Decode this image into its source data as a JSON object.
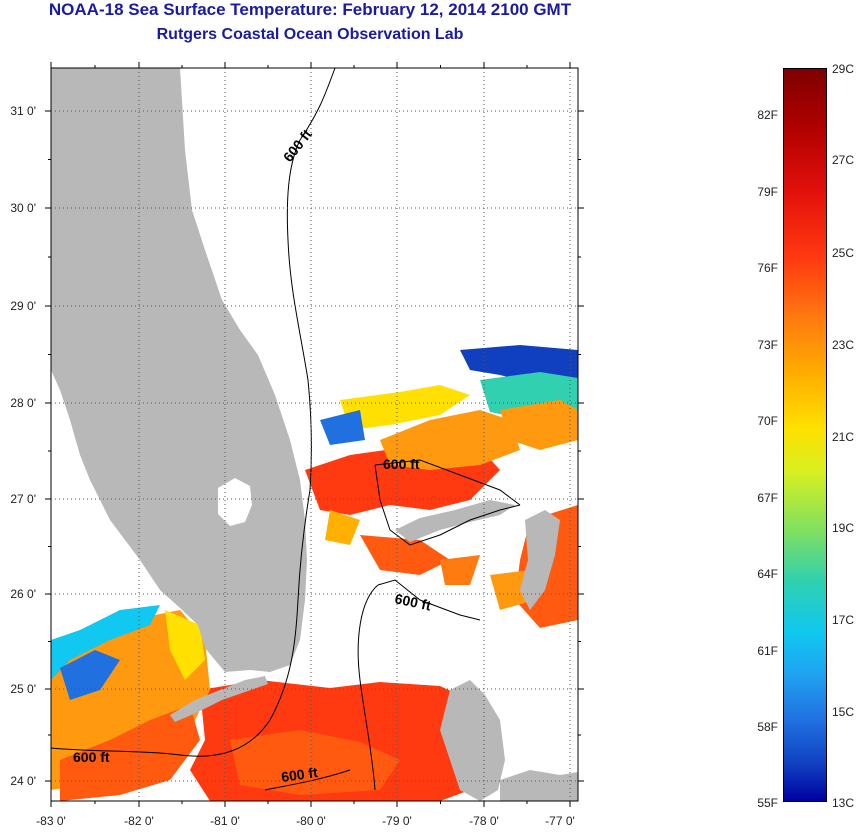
{
  "header": {
    "title": "NOAA-18 Sea Surface Temperature:  February 12, 2014 2100 GMT",
    "subtitle": "Rutgers Coastal Ocean Observation Lab"
  },
  "map": {
    "lat_labels": [
      "31 0'",
      "30 0'",
      "29 0'",
      "28 0'",
      "27 0'",
      "26 0'",
      "25 0'",
      "24 0'"
    ],
    "lon_labels": [
      "-83 0'",
      "-82 0'",
      "-81 0'",
      "-80 0'",
      "-79 0'",
      "-78 0'",
      "-77 0'"
    ],
    "contour_label": "600 ft",
    "colors": {
      "land": "#b8b8b8",
      "ocean_no_data": "#ffffff",
      "warm_sst": "#ff3a10",
      "mid_sst": "#ffb000",
      "cold_sst": "#1040c0"
    }
  },
  "colorbar": {
    "celsius": [
      "29C",
      "27C",
      "25C",
      "23C",
      "21C",
      "19C",
      "17C",
      "15C",
      "13C"
    ],
    "fahrenheit": [
      "82F",
      "79F",
      "76F",
      "73F",
      "70F",
      "67F",
      "64F",
      "61F",
      "58F",
      "55F"
    ]
  }
}
